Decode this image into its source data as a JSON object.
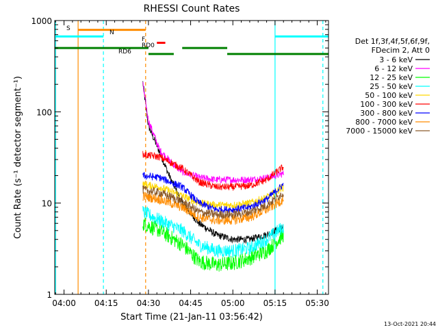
{
  "chart_data": {
    "type": "line",
    "title": "RHESSI Count Rates",
    "xlabel": "Start Time (21-Jan-11 03:56:42)",
    "ylabel": "Count Rate (s⁻¹ detector segment⁻¹)",
    "y_scale": "log",
    "ylim": [
      1,
      1000
    ],
    "xlim": [
      "03:56:42",
      "05:34:00"
    ],
    "x_ticks": [
      "04:00",
      "04:15",
      "04:30",
      "04:45",
      "05:00",
      "05:15",
      "05:30"
    ],
    "y_ticks": [
      "1",
      "10",
      "100",
      "1000"
    ],
    "grid": false,
    "legend_position": "right",
    "legend_header": [
      "Det 1f,3f,4f,5f,6f,9f,",
      "FDecim 2, Att 0"
    ],
    "footer_timestamp": "13-Oct-2021 20:44",
    "series": [
      {
        "name": "3 - 6 keV",
        "color": "#000000",
        "x": [
          "04:28",
          "04:30",
          "04:34",
          "04:38",
          "04:42",
          "04:48",
          "04:54",
          "05:00",
          "05:06",
          "05:12",
          "05:18"
        ],
        "values": [
          210,
          70,
          36,
          18,
          10,
          6,
          4.5,
          4,
          4,
          4.5,
          5.5
        ]
      },
      {
        "name": "6 - 12 keV",
        "color": "#ff00ff",
        "x": [
          "04:28",
          "04:30",
          "04:34",
          "04:38",
          "04:42",
          "04:48",
          "04:54",
          "05:00",
          "05:06",
          "05:12",
          "05:18"
        ],
        "values": [
          200,
          80,
          38,
          28,
          22,
          19,
          18,
          18,
          18,
          19,
          21
        ]
      },
      {
        "name": "12 - 25 keV",
        "color": "#00ff00",
        "x": [
          "04:28",
          "04:34",
          "04:42",
          "04:48",
          "04:54",
          "05:00",
          "05:06",
          "05:12",
          "05:18"
        ],
        "values": [
          6,
          5,
          3.5,
          2.3,
          2.1,
          2.2,
          2.5,
          3,
          4.5
        ]
      },
      {
        "name": "25 - 50 keV",
        "color": "#00ffff",
        "x": [
          "04:28",
          "04:34",
          "04:42",
          "04:48",
          "04:54",
          "05:00",
          "05:06",
          "05:12",
          "05:18"
        ],
        "values": [
          8,
          6.5,
          5,
          3.5,
          3,
          3,
          3.2,
          4,
          5.5
        ]
      },
      {
        "name": "50 - 100 keV",
        "color": "#ffd700",
        "x": [
          "04:28",
          "04:34",
          "04:42",
          "04:48",
          "04:54",
          "05:00",
          "05:06",
          "05:12",
          "05:18"
        ],
        "values": [
          16,
          15,
          12,
          10,
          9.5,
          9.5,
          10,
          11.5,
          15
        ]
      },
      {
        "name": "100 - 300 keV",
        "color": "#ff0000",
        "x": [
          "04:28",
          "04:34",
          "04:42",
          "04:48",
          "04:54",
          "05:00",
          "05:06",
          "05:12",
          "05:18"
        ],
        "values": [
          34,
          32,
          24,
          17,
          15,
          15,
          15.5,
          18,
          25
        ]
      },
      {
        "name": "300 - 800 keV",
        "color": "#0000ff",
        "x": [
          "04:28",
          "04:34",
          "04:42",
          "04:48",
          "04:54",
          "05:00",
          "05:06",
          "05:12",
          "05:18"
        ],
        "values": [
          20,
          19,
          15,
          10,
          8.5,
          8.5,
          9,
          11,
          16
        ]
      },
      {
        "name": "800 - 7000 keV",
        "color": "#ff8c00",
        "x": [
          "04:28",
          "04:34",
          "04:42",
          "04:48",
          "04:54",
          "05:00",
          "05:06",
          "05:12",
          "05:18"
        ],
        "values": [
          12,
          11,
          9,
          7,
          6.5,
          6.5,
          7,
          8.5,
          11
        ]
      },
      {
        "name": "7000 - 15000 keV",
        "color": "#8b5a2b",
        "x": [
          "04:28",
          "04:34",
          "04:42",
          "04:48",
          "04:54",
          "05:00",
          "05:06",
          "05:12",
          "05:18"
        ],
        "values": [
          14,
          13,
          10.5,
          8,
          7.5,
          7.5,
          8,
          9.5,
          13
        ]
      }
    ],
    "flag_lines": [
      {
        "label": "S",
        "color": "#ff8c00",
        "y": 790,
        "segments": [
          [
            "04:05",
            "04:29"
          ]
        ]
      },
      {
        "label": "N",
        "color": "#00ffff",
        "y": 670,
        "segments": [
          [
            "03:56:42",
            "04:14"
          ],
          [
            "05:15",
            "05:34:00"
          ]
        ]
      },
      {
        "label": "F",
        "color": "#ff0000",
        "y": 570,
        "segments": [
          [
            "04:33",
            "04:36"
          ]
        ]
      },
      {
        "label": "RD0",
        "color": "#008000",
        "y": 500,
        "segments": [
          [
            "03:56:42",
            "04:30"
          ],
          [
            "04:42",
            "04:58"
          ]
        ]
      },
      {
        "label": "RD6",
        "color": "#008000",
        "y": 430,
        "segments": [
          [
            "04:30",
            "04:39"
          ],
          [
            "04:58",
            "05:34:00"
          ]
        ]
      }
    ],
    "vlines": [
      {
        "x": "03:57",
        "color": "#00ffff",
        "style": "solid"
      },
      {
        "x": "04:05",
        "color": "#ff8c00",
        "style": "solid"
      },
      {
        "x": "04:14",
        "color": "#00ffff",
        "style": "dashed"
      },
      {
        "x": "04:29",
        "color": "#ff8c00",
        "style": "dashed"
      },
      {
        "x": "05:15",
        "color": "#00ffff",
        "style": "solid"
      },
      {
        "x": "05:32",
        "color": "#00ffff",
        "style": "dashed"
      }
    ]
  }
}
